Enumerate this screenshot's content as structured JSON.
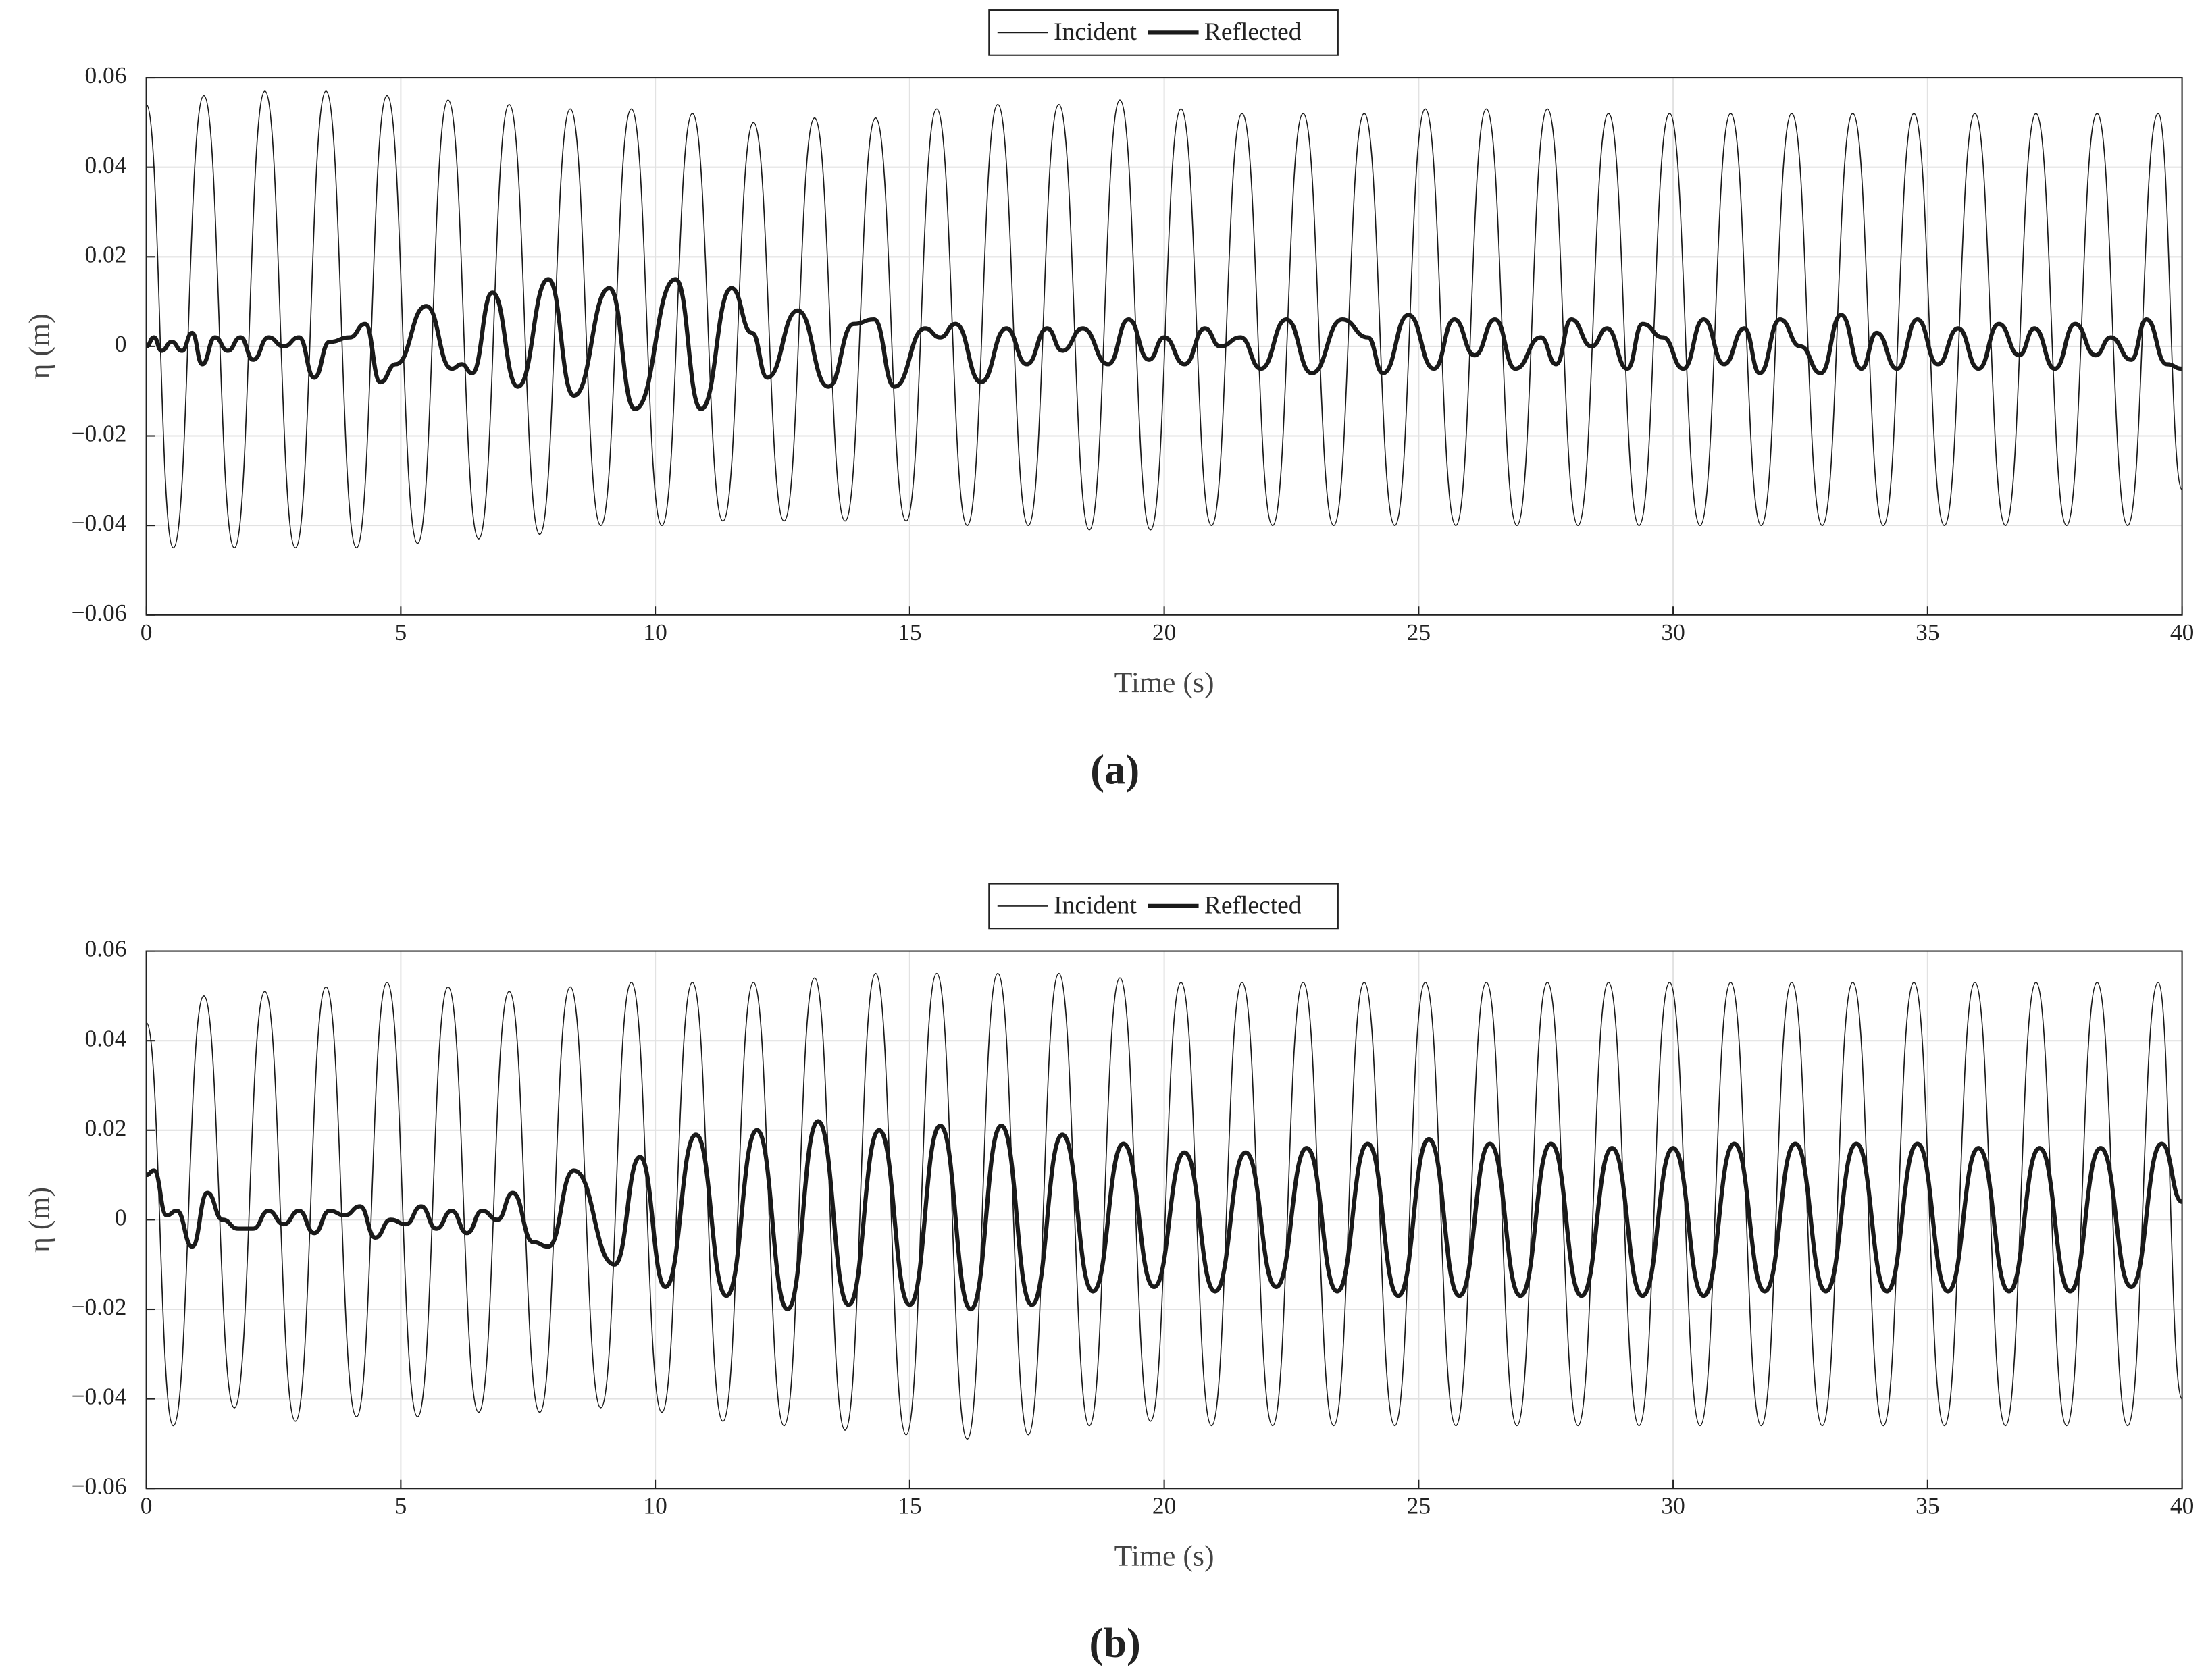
{
  "chart_data": [
    {
      "type": "line",
      "caption": "(a)",
      "xlabel": "Time (s)",
      "ylabel": "η (m)",
      "xlim": [
        0,
        40
      ],
      "ylim": [
        -0.06,
        0.06
      ],
      "xticks": [
        0,
        5,
        10,
        15,
        20,
        25,
        30,
        35,
        40
      ],
      "yticks": [
        {
          "value": -0.06,
          "label": "−0.06"
        },
        {
          "value": -0.04,
          "label": "−0.04"
        },
        {
          "value": -0.02,
          "label": "−0.02"
        },
        0,
        0.02,
        0.04,
        0.06
      ],
      "grid": true,
      "legend": "top",
      "series": [
        {
          "name": "Incident",
          "color": "#1a1a1a",
          "width": 0.8,
          "x": [
            0,
            0.53,
            1.13,
            1.73,
            2.33,
            2.93,
            3.53,
            4.13,
            4.73,
            5.33,
            5.93,
            6.53,
            7.13,
            7.73,
            8.33,
            8.93,
            9.53,
            10.13,
            10.73,
            11.33,
            11.93,
            12.53,
            13.13,
            13.73,
            14.33,
            14.93,
            15.53,
            16.13,
            16.73,
            17.33,
            17.93,
            18.53,
            19.13,
            19.73,
            20.33,
            20.93,
            21.53,
            22.13,
            22.73,
            23.33,
            23.93,
            24.53,
            25.13,
            25.73,
            26.33,
            26.93,
            27.53,
            28.13,
            28.73,
            29.33,
            29.93,
            30.53,
            31.13,
            31.73,
            32.33,
            32.93,
            33.53,
            34.13,
            34.73,
            35.33,
            35.93,
            36.53,
            37.13,
            37.73,
            38.33,
            38.93,
            39.53,
            40
          ],
          "values": [
            0.054,
            -0.045,
            0.056,
            -0.045,
            0.057,
            -0.045,
            0.057,
            -0.045,
            0.056,
            -0.044,
            0.055,
            -0.043,
            0.054,
            -0.042,
            0.053,
            -0.04,
            0.053,
            -0.04,
            0.052,
            -0.039,
            0.05,
            -0.039,
            0.051,
            -0.039,
            0.051,
            -0.039,
            0.053,
            -0.04,
            0.054,
            -0.04,
            0.054,
            -0.041,
            0.055,
            -0.041,
            0.053,
            -0.04,
            0.052,
            -0.04,
            0.052,
            -0.04,
            0.052,
            -0.04,
            0.053,
            -0.04,
            0.053,
            -0.04,
            0.053,
            -0.04,
            0.052,
            -0.04,
            0.052,
            -0.04,
            0.052,
            -0.04,
            0.052,
            -0.04,
            0.052,
            -0.04,
            0.052,
            -0.04,
            0.052,
            -0.04,
            0.052,
            -0.04,
            0.052,
            -0.04,
            0.052,
            -0.032
          ]
        },
        {
          "name": "Reflected",
          "color": "#1a1a1a",
          "width": 3,
          "x": [
            0,
            0.15,
            0.3,
            0.5,
            0.7,
            0.9,
            1.1,
            1.35,
            1.6,
            1.85,
            2.1,
            2.4,
            2.7,
            3.0,
            3.3,
            3.6,
            4.0,
            4.3,
            4.6,
            4.9,
            5.5,
            6.0,
            6.2,
            6.4,
            6.8,
            7.3,
            7.9,
            8.4,
            9.1,
            9.6,
            10.4,
            10.9,
            11.5,
            11.9,
            12.2,
            12.8,
            13.4,
            13.9,
            14.3,
            14.7,
            15.3,
            15.6,
            15.9,
            16.4,
            16.9,
            17.3,
            17.7,
            18.0,
            18.4,
            18.9,
            19.3,
            19.7,
            20.0,
            20.4,
            20.8,
            21.1,
            21.5,
            21.9,
            22.4,
            22.9,
            23.5,
            24.0,
            24.3,
            24.8,
            25.3,
            25.7,
            26.1,
            26.5,
            26.9,
            27.4,
            27.7,
            28.0,
            28.4,
            28.7,
            29.1,
            29.4,
            29.8,
            30.2,
            30.6,
            31.0,
            31.4,
            31.7,
            32.1,
            32.5,
            32.9,
            33.3,
            33.7,
            34.0,
            34.4,
            34.8,
            35.2,
            35.6,
            36.0,
            36.4,
            36.8,
            37.1,
            37.5,
            37.9,
            38.3,
            38.6,
            39.0,
            39.3,
            39.7,
            40.0
          ],
          "values": [
            0,
            0.002,
            -0.001,
            0.001,
            -0.001,
            0.003,
            -0.004,
            0.002,
            -0.001,
            0.002,
            -0.003,
            0.002,
            0.0,
            0.002,
            -0.007,
            0.001,
            0.002,
            0.005,
            -0.008,
            -0.004,
            0.009,
            -0.005,
            -0.004,
            -0.006,
            0.012,
            -0.009,
            0.015,
            -0.011,
            0.013,
            -0.014,
            0.015,
            -0.014,
            0.013,
            0.003,
            -0.007,
            0.008,
            -0.009,
            0.005,
            0.006,
            -0.009,
            0.004,
            0.002,
            0.005,
            -0.008,
            0.004,
            -0.004,
            0.004,
            -0.001,
            0.004,
            -0.004,
            0.006,
            -0.003,
            0.002,
            -0.004,
            0.004,
            0.0,
            0.002,
            -0.005,
            0.006,
            -0.006,
            0.006,
            0.002,
            -0.006,
            0.007,
            -0.005,
            0.006,
            -0.002,
            0.006,
            -0.005,
            0.002,
            -0.004,
            0.006,
            0.0,
            0.004,
            -0.005,
            0.005,
            0.002,
            -0.005,
            0.006,
            -0.004,
            0.004,
            -0.006,
            0.006,
            0.0,
            -0.006,
            0.007,
            -0.005,
            0.003,
            -0.005,
            0.006,
            -0.004,
            0.004,
            -0.005,
            0.005,
            -0.002,
            0.004,
            -0.005,
            0.005,
            -0.002,
            0.002,
            -0.003,
            0.006,
            -0.004,
            -0.005
          ]
        }
      ]
    },
    {
      "type": "line",
      "caption": "(b)",
      "xlabel": "Time (s)",
      "ylabel": "η (m)",
      "xlim": [
        0,
        40
      ],
      "ylim": [
        -0.06,
        0.06
      ],
      "xticks": [
        0,
        5,
        10,
        15,
        20,
        25,
        30,
        35,
        40
      ],
      "yticks": [
        {
          "value": -0.06,
          "label": "−0.06"
        },
        {
          "value": -0.04,
          "label": "−0.04"
        },
        {
          "value": -0.02,
          "label": "−0.02"
        },
        0,
        0.02,
        0.04,
        0.06
      ],
      "grid": true,
      "legend": "top",
      "series": [
        {
          "name": "Incident",
          "color": "#1a1a1a",
          "width": 0.8,
          "x": [
            0,
            0.53,
            1.13,
            1.73,
            2.33,
            2.93,
            3.53,
            4.13,
            4.73,
            5.33,
            5.93,
            6.53,
            7.13,
            7.73,
            8.33,
            8.93,
            9.53,
            10.13,
            10.73,
            11.33,
            11.93,
            12.53,
            13.13,
            13.73,
            14.33,
            14.93,
            15.53,
            16.13,
            16.73,
            17.33,
            17.93,
            18.53,
            19.13,
            19.73,
            20.33,
            20.93,
            21.53,
            22.13,
            22.73,
            23.33,
            23.93,
            24.53,
            25.13,
            25.73,
            26.33,
            26.93,
            27.53,
            28.13,
            28.73,
            29.33,
            29.93,
            30.53,
            31.13,
            31.73,
            32.33,
            32.93,
            33.53,
            34.13,
            34.73,
            35.33,
            35.93,
            36.53,
            37.13,
            37.73,
            38.33,
            38.93,
            39.53,
            40
          ],
          "values": [
            0.044,
            -0.046,
            0.05,
            -0.042,
            0.051,
            -0.045,
            0.052,
            -0.044,
            0.053,
            -0.044,
            0.052,
            -0.043,
            0.051,
            -0.043,
            0.052,
            -0.042,
            0.053,
            -0.043,
            0.053,
            -0.045,
            0.053,
            -0.046,
            0.054,
            -0.047,
            0.055,
            -0.048,
            0.055,
            -0.049,
            0.055,
            -0.048,
            0.055,
            -0.046,
            0.054,
            -0.045,
            0.053,
            -0.046,
            0.053,
            -0.046,
            0.053,
            -0.046,
            0.053,
            -0.046,
            0.053,
            -0.046,
            0.053,
            -0.046,
            0.053,
            -0.046,
            0.053,
            -0.046,
            0.053,
            -0.046,
            0.053,
            -0.046,
            0.053,
            -0.046,
            0.053,
            -0.046,
            0.053,
            -0.046,
            0.053,
            -0.046,
            0.053,
            -0.046,
            0.053,
            -0.046,
            0.053,
            -0.04
          ]
        },
        {
          "name": "Reflected",
          "color": "#1a1a1a",
          "width": 3,
          "x": [
            0,
            0.15,
            0.4,
            0.6,
            0.9,
            1.2,
            1.5,
            1.8,
            2.1,
            2.4,
            2.7,
            3.0,
            3.3,
            3.6,
            3.9,
            4.2,
            4.5,
            4.8,
            5.1,
            5.4,
            5.7,
            6.0,
            6.3,
            6.6,
            6.9,
            7.2,
            7.6,
            7.9,
            8.4,
            9.2,
            9.7,
            10.2,
            10.8,
            11.4,
            12.0,
            12.6,
            13.2,
            13.8,
            14.4,
            15.0,
            15.6,
            16.2,
            16.8,
            17.4,
            18.0,
            18.6,
            19.2,
            19.8,
            20.4,
            21.0,
            21.6,
            22.2,
            22.8,
            23.4,
            24.0,
            24.6,
            25.2,
            25.8,
            26.4,
            27.0,
            27.6,
            28.2,
            28.8,
            29.4,
            30.0,
            30.6,
            31.2,
            31.8,
            32.4,
            33.0,
            33.6,
            34.2,
            34.8,
            35.4,
            36.0,
            36.6,
            37.2,
            37.8,
            38.4,
            39.0,
            39.6,
            40.0
          ],
          "values": [
            0.01,
            0.011,
            0.001,
            0.002,
            -0.006,
            0.006,
            0.0,
            -0.002,
            -0.002,
            0.002,
            -0.001,
            0.002,
            -0.003,
            0.002,
            0.001,
            0.003,
            -0.004,
            0.0,
            -0.001,
            0.003,
            -0.002,
            0.002,
            -0.003,
            0.002,
            0.0,
            0.006,
            -0.005,
            -0.006,
            0.011,
            -0.01,
            0.014,
            -0.015,
            0.019,
            -0.017,
            0.02,
            -0.02,
            0.022,
            -0.019,
            0.02,
            -0.019,
            0.021,
            -0.02,
            0.021,
            -0.019,
            0.019,
            -0.016,
            0.017,
            -0.015,
            0.015,
            -0.016,
            0.015,
            -0.015,
            0.016,
            -0.016,
            0.017,
            -0.017,
            0.018,
            -0.017,
            0.017,
            -0.017,
            0.017,
            -0.017,
            0.016,
            -0.017,
            0.016,
            -0.017,
            0.017,
            -0.016,
            0.017,
            -0.016,
            0.017,
            -0.016,
            0.017,
            -0.016,
            0.016,
            -0.016,
            0.016,
            -0.016,
            0.016,
            -0.015,
            0.017,
            0.004
          ]
        }
      ]
    }
  ]
}
